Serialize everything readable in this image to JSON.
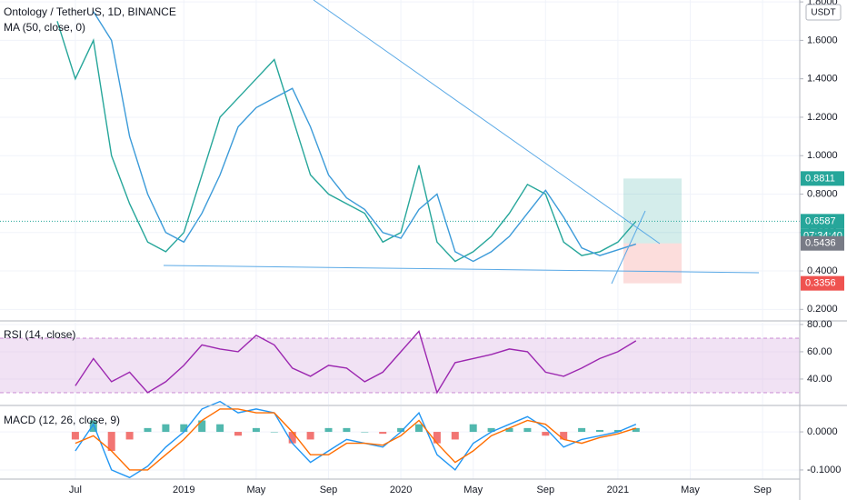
{
  "chart_data": [
    {
      "type": "line",
      "title": "Ontology / TetherUS, 1D, BINANCE",
      "subtitle": "MA (50, close, 0)",
      "currency": "USDT",
      "countdown": "07:34:40",
      "categories": [
        null,
        "Jul",
        null,
        null,
        null,
        null,
        null,
        "2019",
        null,
        null,
        null,
        "May",
        null,
        null,
        null,
        "Sep",
        null,
        null,
        null,
        "2020",
        null,
        null,
        null,
        "May",
        null,
        null,
        null,
        "Sep",
        null,
        null,
        null,
        "2021",
        null,
        null,
        null,
        "May",
        null,
        null,
        null,
        "Sep"
      ],
      "series": [
        {
          "name": "Ontology / TetherUS",
          "color": "#26a69a",
          "values": [
            1.7,
            1.4,
            1.6,
            1.0,
            0.75,
            0.55,
            0.5,
            0.6,
            0.9,
            1.2,
            1.3,
            1.4,
            1.5,
            1.2,
            0.9,
            0.8,
            0.75,
            0.7,
            0.55,
            0.6,
            0.95,
            0.55,
            0.45,
            0.5,
            0.58,
            0.7,
            0.85,
            0.8,
            0.55,
            0.48,
            0.5,
            0.55,
            0.6587,
            null,
            null,
            null,
            null,
            null,
            null,
            null
          ]
        },
        {
          "name": "MA (50, close, 0)",
          "color": "#3c9bd9",
          "values": [
            null,
            null,
            1.75,
            1.6,
            1.1,
            0.8,
            0.6,
            0.55,
            0.7,
            0.9,
            1.15,
            1.25,
            1.3,
            1.35,
            1.15,
            0.9,
            0.78,
            0.72,
            0.6,
            0.57,
            0.72,
            0.8,
            0.5,
            0.45,
            0.5,
            0.58,
            0.7,
            0.82,
            0.68,
            0.52,
            0.48,
            0.51,
            0.54,
            null,
            null,
            null,
            null,
            null,
            null,
            null
          ]
        }
      ],
      "price_labels": [
        {
          "value": 0.8811,
          "color": "#26a69a"
        },
        {
          "value": 0.6587,
          "color": "#26a69a"
        },
        {
          "value": 0.5436,
          "color": "#787b86"
        },
        {
          "value": 0.3356,
          "color": "#ef5350"
        }
      ],
      "ylim": [
        0.14,
        1.81
      ],
      "yticks": [
        {
          "value": 0.2,
          "label": "0.2000"
        },
        {
          "value": 0.4,
          "label": "0.4000"
        },
        {
          "value": 0.6,
          "label": "0.6000"
        },
        {
          "value": 0.8,
          "label": "0.8000"
        },
        {
          "value": 1.0,
          "label": "1.0000"
        },
        {
          "value": 1.2,
          "label": "1.2000"
        },
        {
          "value": 1.4,
          "label": "1.4000"
        },
        {
          "value": 1.6,
          "label": "1.6000"
        },
        {
          "value": 1.8,
          "label": "1.8000"
        }
      ],
      "grid": true
    },
    {
      "type": "line",
      "title": "RSI (14, close)",
      "series": [
        {
          "name": "RSI",
          "color": "#9c27b0",
          "values": [
            null,
            35,
            55,
            38,
            45,
            30,
            38,
            50,
            65,
            62,
            60,
            72,
            65,
            48,
            42,
            50,
            48,
            38,
            45,
            60,
            75,
            30,
            52,
            55,
            58,
            62,
            60,
            45,
            42,
            48,
            55,
            60,
            68,
            null,
            null,
            null,
            null,
            null,
            null,
            null
          ]
        }
      ],
      "band": [
        30,
        70
      ],
      "band_color": "#e1bee7",
      "ylim": [
        21.3,
        81.3
      ],
      "yticks": [
        {
          "value": 40,
          "label": "40.00"
        },
        {
          "value": 60,
          "label": "60.00"
        },
        {
          "value": 80,
          "label": "80.00"
        }
      ],
      "grid": true
    },
    {
      "type": "bar",
      "title": "MACD (12, 26, close, 9)",
      "series": [
        {
          "name": "Histogram",
          "type": "bar",
          "up_color": "#26a69a",
          "down_color": "#ef5350",
          "values": [
            null,
            -0.02,
            0.03,
            -0.05,
            -0.02,
            0.01,
            0.02,
            0.02,
            0.03,
            0.02,
            -0.01,
            0.01,
            0.0,
            -0.03,
            -0.02,
            0.01,
            0.01,
            0.0,
            -0.005,
            0.01,
            0.02,
            -0.03,
            -0.02,
            0.02,
            0.01,
            0.01,
            0.01,
            -0.01,
            -0.02,
            0.01,
            0.005,
            0.005,
            0.01,
            null,
            null,
            null,
            null,
            null,
            null,
            null
          ]
        },
        {
          "name": "MACD",
          "type": "line",
          "color": "#2196f3",
          "values": [
            null,
            -0.05,
            0.02,
            -0.1,
            -0.12,
            -0.09,
            -0.04,
            0.0,
            0.06,
            0.08,
            0.05,
            0.06,
            0.05,
            -0.03,
            -0.08,
            -0.05,
            -0.02,
            -0.03,
            -0.04,
            0.0,
            0.05,
            -0.06,
            -0.1,
            -0.03,
            0.0,
            0.02,
            0.04,
            0.01,
            -0.04,
            -0.02,
            -0.01,
            0.0,
            0.02,
            null,
            null,
            null,
            null,
            null,
            null,
            null
          ]
        },
        {
          "name": "Signal",
          "type": "line",
          "color": "#ff6d00",
          "values": [
            null,
            -0.03,
            -0.01,
            -0.05,
            -0.1,
            -0.1,
            -0.06,
            -0.02,
            0.03,
            0.06,
            0.06,
            0.05,
            0.05,
            0.0,
            -0.06,
            -0.06,
            -0.03,
            -0.03,
            -0.035,
            -0.01,
            0.03,
            -0.03,
            -0.08,
            -0.05,
            -0.01,
            0.01,
            0.03,
            0.02,
            -0.02,
            -0.03,
            -0.015,
            -0.005,
            0.01,
            null,
            null,
            null,
            null,
            null,
            null,
            null
          ]
        }
      ],
      "ylim": [
        -0.124,
        0.067
      ],
      "yticks": [
        {
          "value": -0.1,
          "label": "-0.1000"
        },
        {
          "value": 0,
          "label": "0.0000"
        }
      ],
      "grid": true
    }
  ]
}
